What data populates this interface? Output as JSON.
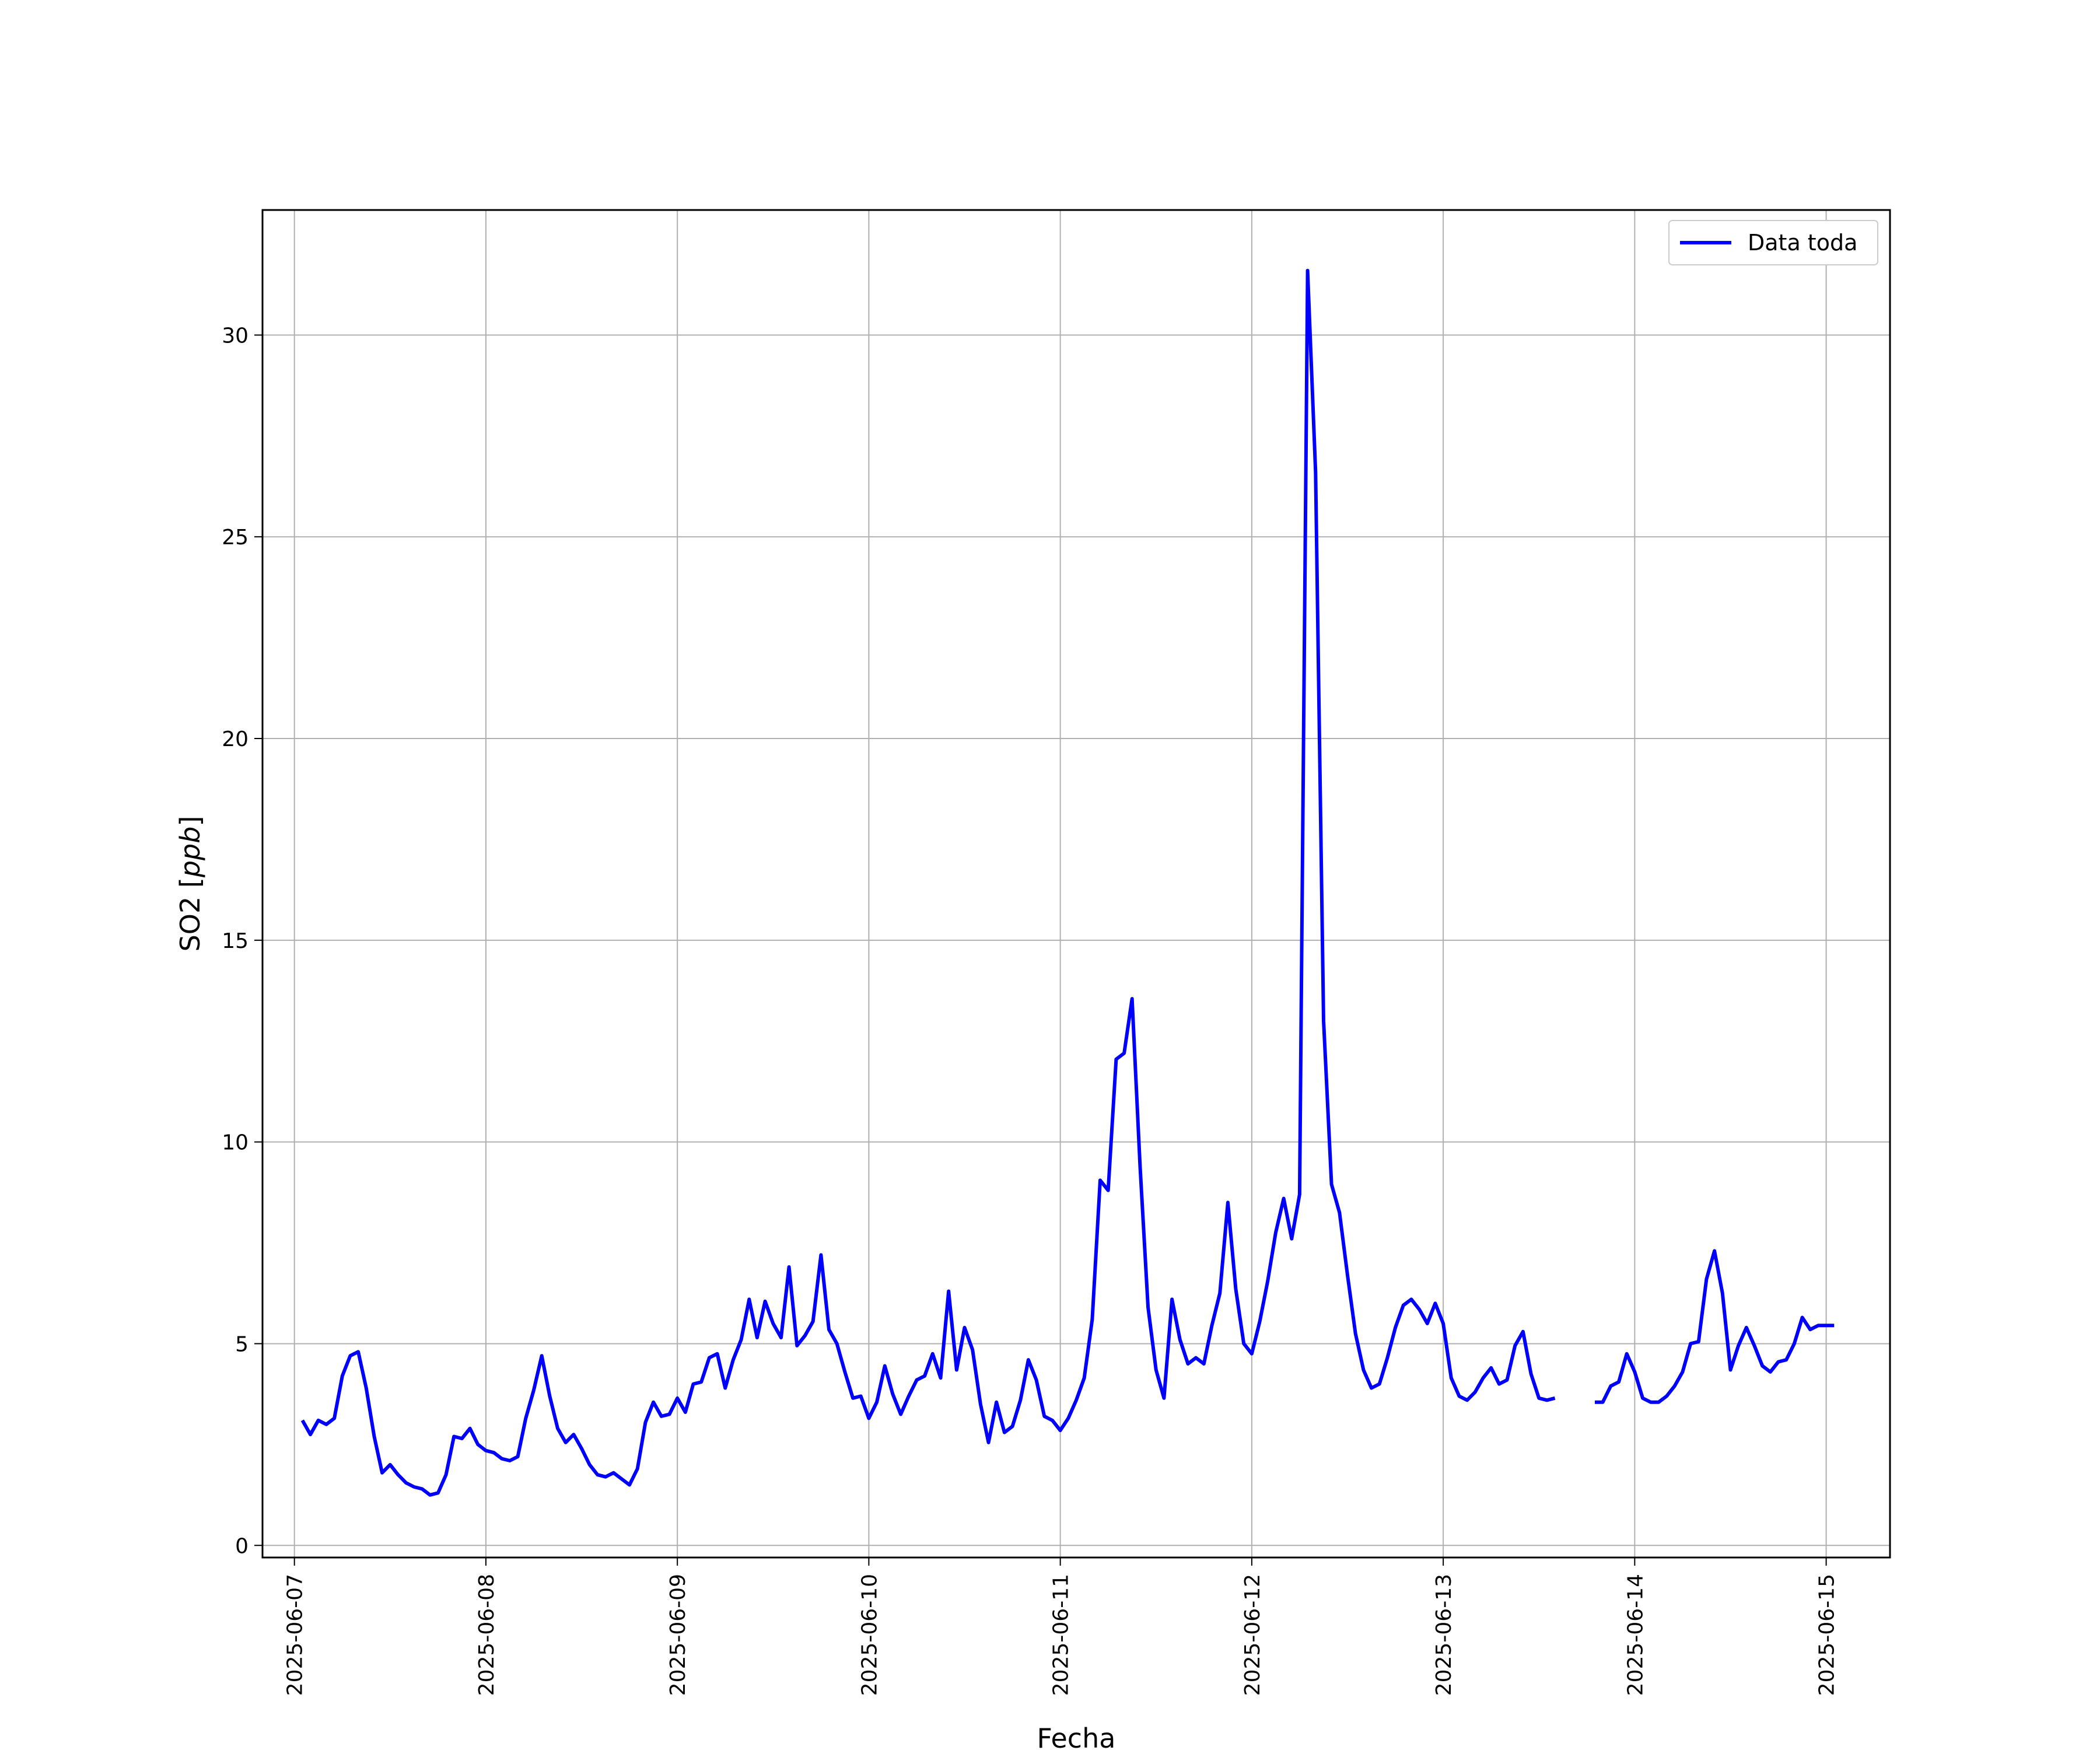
{
  "chart_data": {
    "type": "line",
    "title": "",
    "xlabel": "Fecha",
    "ylabel_text": "SO2 [",
    "ylabel_unit": "ppb",
    "ylabel_close": "]",
    "xlim": [
      "2025-06-06T20:00",
      "2025-06-15T08:00"
    ],
    "ylim": [
      -0.3,
      33.1
    ],
    "x_ticks": [
      "2025-06-07",
      "2025-06-08",
      "2025-06-09",
      "2025-06-10",
      "2025-06-11",
      "2025-06-12",
      "2025-06-13",
      "2025-06-14",
      "2025-06-15"
    ],
    "y_ticks": [
      0,
      5,
      10,
      15,
      20,
      25,
      30
    ],
    "y_tick_labels": [
      "0",
      "5",
      "10",
      "15",
      "20",
      "25",
      "30"
    ],
    "grid": true,
    "legend_position": "upper right",
    "series": [
      {
        "name": "Data toda",
        "color": "#0000ff",
        "segments": [
          {
            "start": "2025-06-07T01:00",
            "step_hours": 1,
            "values": [
              3.1,
              2.75,
              3.1,
              3.0,
              3.15,
              4.2,
              4.7,
              4.8,
              3.9,
              2.7,
              1.8,
              2.0,
              1.75,
              1.55,
              1.45,
              1.4,
              1.25,
              1.3,
              1.75,
              2.7,
              2.65,
              2.9,
              2.5,
              2.35,
              2.3,
              2.15,
              2.1,
              2.2,
              3.15,
              3.85,
              4.7,
              3.7,
              2.9,
              2.55,
              2.75,
              2.4,
              2.0,
              1.75,
              1.7,
              1.8,
              1.65,
              1.5,
              1.9,
              3.05,
              3.55,
              3.2,
              3.25,
              3.65,
              3.3,
              4.0,
              4.05,
              4.65,
              4.75,
              3.9,
              4.6,
              5.1,
              6.1,
              5.15,
              6.05,
              5.5,
              5.15,
              6.9,
              4.95,
              5.2,
              5.55,
              7.2,
              5.35,
              5.0,
              4.3,
              3.65,
              3.7,
              3.15,
              3.55,
              4.45,
              3.75,
              3.25,
              3.7,
              4.1,
              4.2,
              4.75,
              4.15,
              6.3,
              4.35,
              5.4,
              4.85,
              3.5,
              2.55,
              3.55,
              2.8,
              2.95,
              3.6,
              4.6,
              4.1,
              3.2,
              3.1,
              2.85,
              3.15,
              3.6,
              4.15,
              5.6,
              9.05,
              8.8,
              12.05,
              12.2,
              13.55,
              9.4,
              5.9,
              4.35,
              3.65,
              6.1,
              5.1,
              4.5,
              4.65,
              4.5,
              5.45,
              6.25,
              8.5,
              6.35,
              5.0,
              4.75,
              5.55,
              6.55,
              7.75,
              8.6,
              7.6,
              8.7,
              31.6,
              26.6,
              13.0,
              8.95,
              8.25,
              6.7,
              5.25,
              4.35,
              3.9,
              4.0,
              4.65,
              5.4,
              5.95,
              6.1,
              5.85,
              5.5,
              6.0,
              5.5,
              4.15,
              3.7,
              3.6,
              3.8,
              4.15,
              4.4,
              4.0,
              4.1,
              4.95,
              5.3,
              4.25,
              3.65,
              3.6,
              3.65
            ]
          },
          {
            "start": "2025-06-13T19:00",
            "step_hours": 1,
            "values": [
              3.55,
              3.55,
              3.95,
              4.05,
              4.75,
              4.3,
              3.65,
              3.55,
              3.55,
              3.7,
              3.95,
              4.3,
              5.0,
              5.05,
              6.6,
              7.3,
              6.25,
              4.35,
              4.95,
              5.4,
              4.95,
              4.45,
              4.3,
              4.55,
              4.6,
              5.0,
              5.65,
              5.35,
              5.45,
              5.45,
              5.45
            ]
          }
        ]
      }
    ]
  }
}
